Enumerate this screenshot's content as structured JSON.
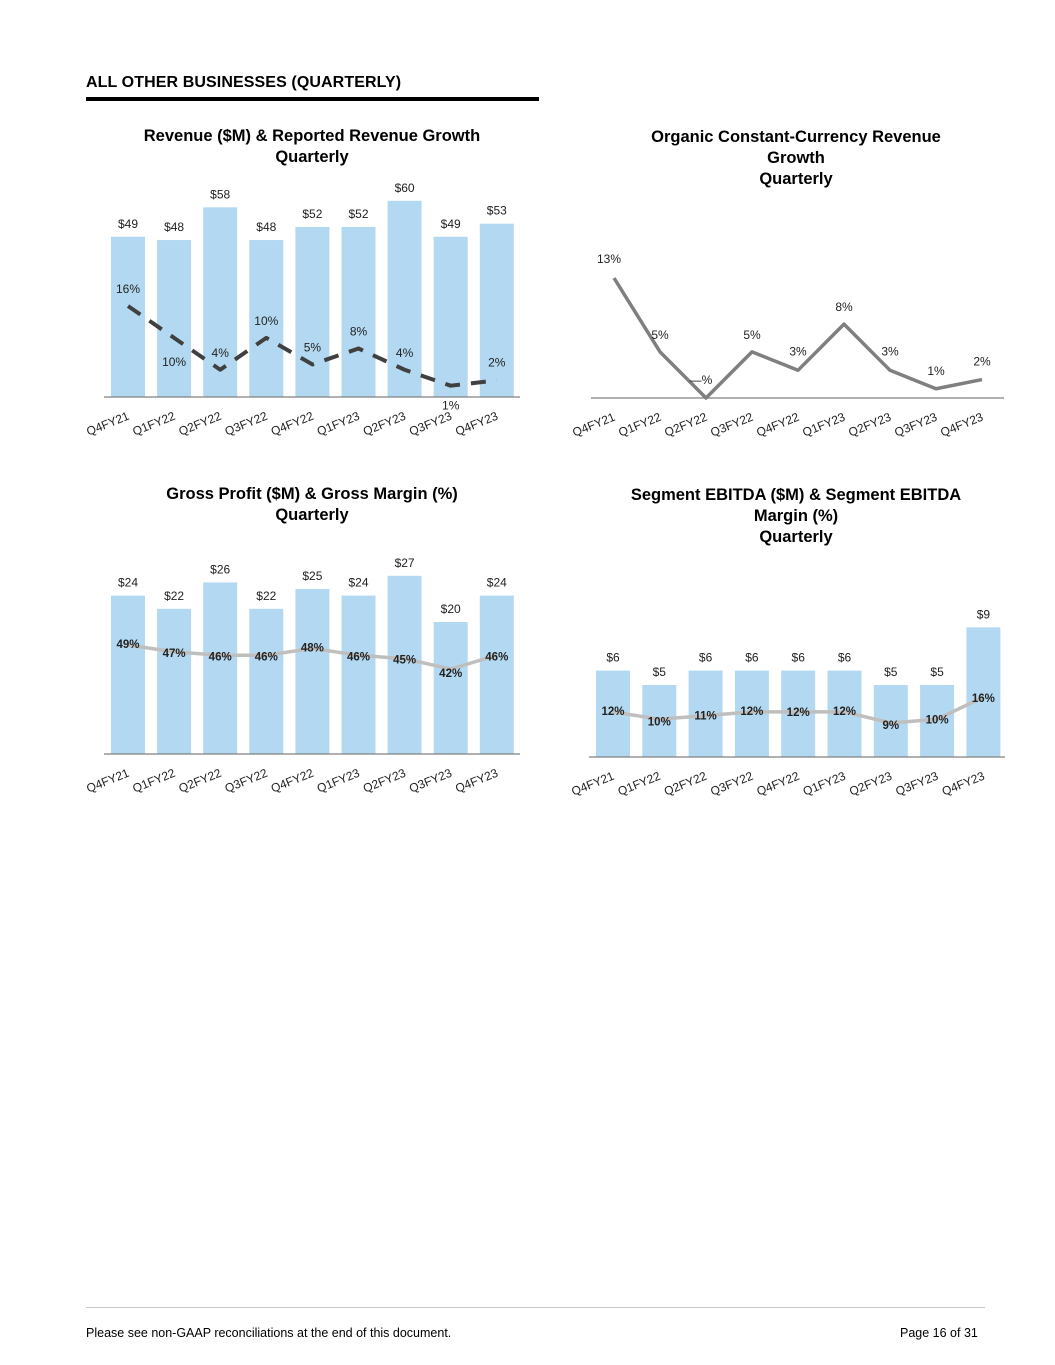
{
  "section_title": "ALL OTHER BUSINESSES (QUARTERLY)",
  "colors": {
    "bar": "#b3d9f2",
    "revenue_line": "#404040",
    "organic_line": "#7f7f7f",
    "margin_line": "#bfbfbf",
    "axis": "#808080"
  },
  "chart_data": [
    {
      "type": "bar",
      "title": "Revenue ($M) & Reported Revenue Growth\nQuarterly",
      "categories": [
        "Q4FY21",
        "Q1FY22",
        "Q2FY22",
        "Q3FY22",
        "Q4FY22",
        "Q1FY23",
        "Q2FY23",
        "Q3FY23",
        "Q4FY23"
      ],
      "bars": {
        "values": [
          49,
          48,
          58,
          48,
          52,
          52,
          60,
          49,
          53
        ],
        "labels": [
          "$49",
          "$48",
          "$58",
          "$48",
          "$52",
          "$52",
          "$60",
          "$49",
          "$53"
        ]
      },
      "line": {
        "values": [
          16,
          10,
          4,
          10,
          5,
          8,
          4,
          1,
          2
        ],
        "labels": [
          "16%",
          "10%",
          "4%",
          "10%",
          "5%",
          "8%",
          "4%",
          "1%",
          "2%"
        ],
        "style": "dashed"
      }
    },
    {
      "type": "line",
      "title": "Organic Constant-Currency Revenue\nGrowth\nQuarterly",
      "categories": [
        "Q4FY21",
        "Q1FY22",
        "Q2FY22",
        "Q3FY22",
        "Q4FY22",
        "Q1FY23",
        "Q2FY23",
        "Q3FY23",
        "Q4FY23"
      ],
      "line": {
        "values": [
          13,
          5,
          0,
          5,
          3,
          8,
          3,
          1,
          2
        ],
        "labels": [
          "13%",
          "5%",
          "—%",
          "5%",
          "3%",
          "8%",
          "3%",
          "1%",
          "2%"
        ],
        "style": "solid"
      }
    },
    {
      "type": "bar",
      "title": "Gross Profit ($M) & Gross Margin (%)\nQuarterly",
      "categories": [
        "Q4FY21",
        "Q1FY22",
        "Q2FY22",
        "Q3FY22",
        "Q4FY22",
        "Q1FY23",
        "Q2FY23",
        "Q3FY23",
        "Q4FY23"
      ],
      "bars": {
        "values": [
          24,
          22,
          26,
          22,
          25,
          24,
          27,
          20,
          24
        ],
        "labels": [
          "$24",
          "$22",
          "$26",
          "$22",
          "$25",
          "$24",
          "$27",
          "$20",
          "$24"
        ]
      },
      "line": {
        "values": [
          49,
          47,
          46,
          46,
          48,
          46,
          45,
          42,
          46
        ],
        "labels": [
          "49%",
          "47%",
          "46%",
          "46%",
          "48%",
          "46%",
          "45%",
          "42%",
          "46%"
        ],
        "style": "solid"
      }
    },
    {
      "type": "bar",
      "title": "Segment EBITDA ($M) & Segment EBITDA\nMargin (%)\nQuarterly",
      "categories": [
        "Q4FY21",
        "Q1FY22",
        "Q2FY22",
        "Q3FY22",
        "Q4FY22",
        "Q1FY23",
        "Q2FY23",
        "Q3FY23",
        "Q4FY23"
      ],
      "bars": {
        "values": [
          6,
          5,
          6,
          6,
          6,
          6,
          5,
          5,
          9
        ],
        "labels": [
          "$6",
          "$5",
          "$6",
          "$6",
          "$6",
          "$6",
          "$5",
          "$5",
          "$9"
        ]
      },
      "line": {
        "values": [
          12,
          10,
          11,
          12,
          12,
          12,
          9,
          10,
          16
        ],
        "labels": [
          "12%",
          "10%",
          "11%",
          "12%",
          "12%",
          "12%",
          "9%",
          "10%",
          "16%"
        ],
        "style": "solid"
      }
    }
  ],
  "footer": {
    "note": "Please see non-GAAP reconciliations at the end of this document.",
    "page": "Page 16 of 31"
  }
}
